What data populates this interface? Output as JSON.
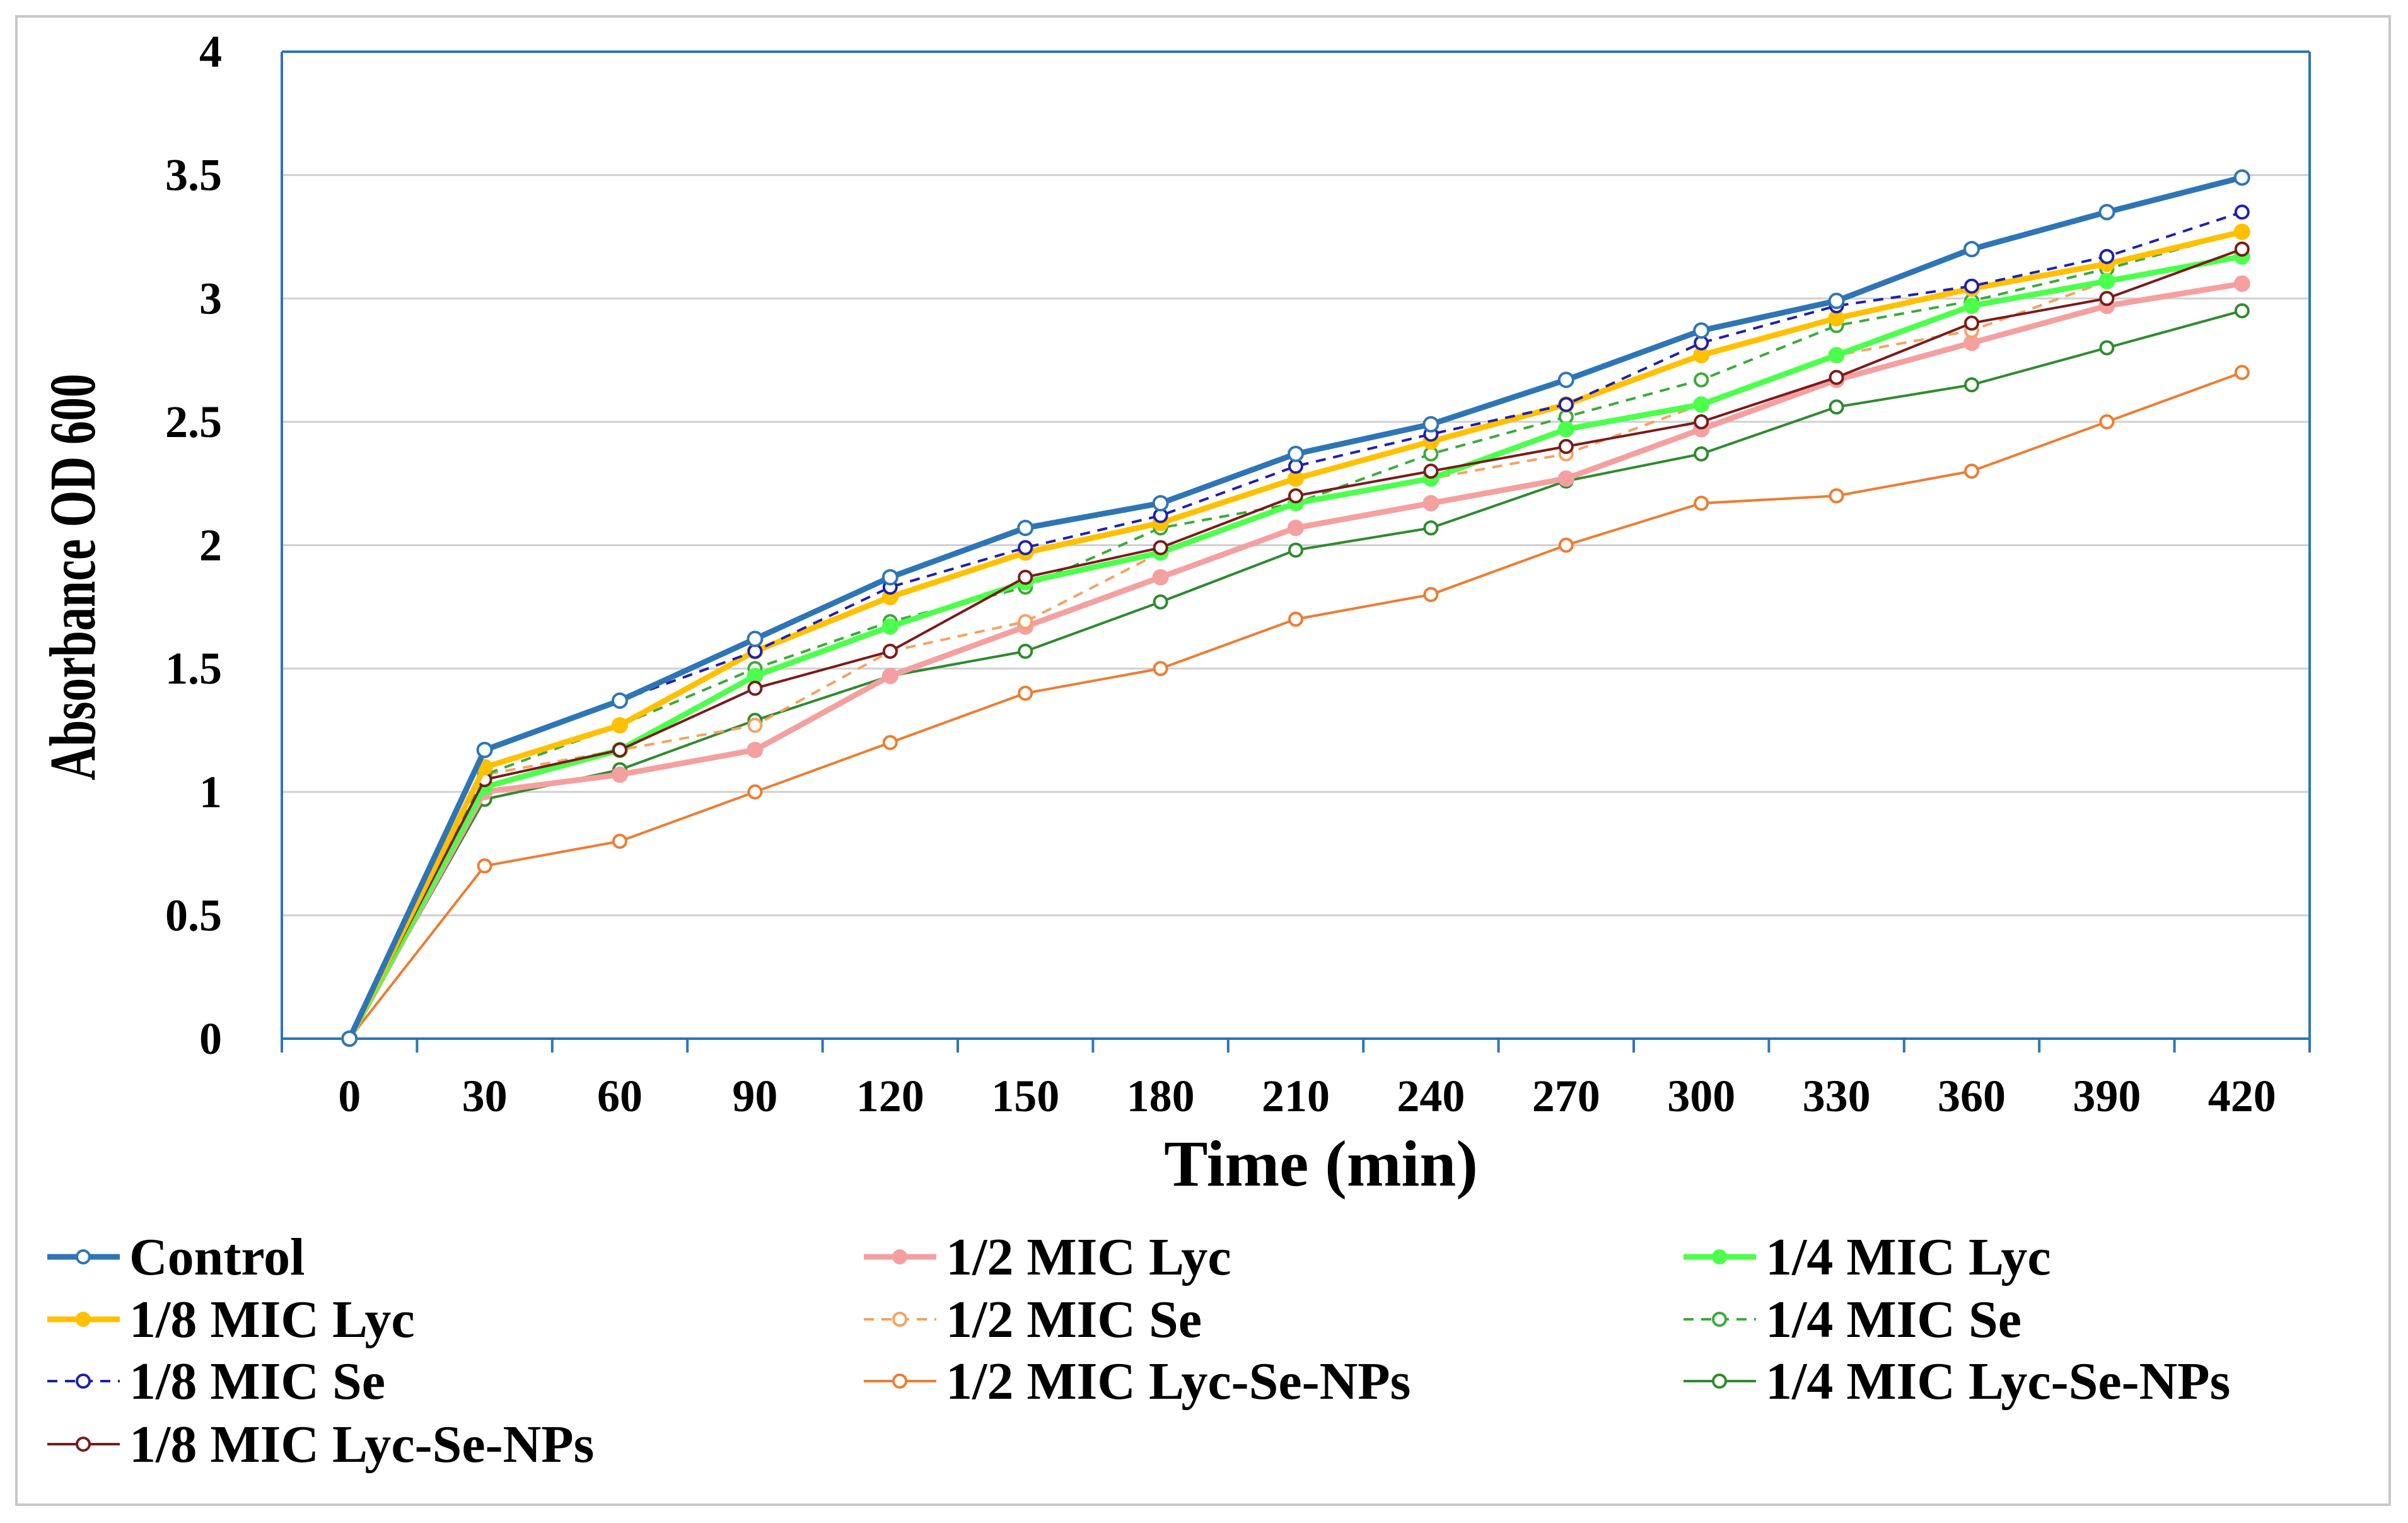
{
  "chart_data": {
    "type": "line",
    "title": "",
    "xlabel": "Time (min)",
    "ylabel": "Absorbance OD 600",
    "x": [
      0,
      30,
      60,
      90,
      120,
      150,
      180,
      210,
      240,
      270,
      300,
      330,
      360,
      390,
      420
    ],
    "x_tick_labels": [
      "0",
      "30",
      "60",
      "90",
      "120",
      "150",
      "180",
      "210",
      "240",
      "270",
      "300",
      "330",
      "360",
      "390",
      "420"
    ],
    "ylim": [
      0,
      4
    ],
    "y_ticks": [
      0,
      0.5,
      1,
      1.5,
      2,
      2.5,
      3,
      3.5,
      4
    ],
    "y_tick_labels": [
      "0",
      "0.5",
      "1",
      "1.5",
      "2",
      "2.5",
      "3",
      "3.5",
      "4"
    ],
    "grid": "horizontal",
    "legend_position": "bottom",
    "series": [
      {
        "name": "Control",
        "color": "#2e75b6",
        "style": "solid",
        "weight": "thick",
        "marker": "open-circle",
        "values": [
          0,
          1.17,
          1.37,
          1.62,
          1.87,
          2.07,
          2.17,
          2.37,
          2.49,
          2.67,
          2.87,
          2.99,
          3.2,
          3.35,
          3.49
        ]
      },
      {
        "name": "1/2 MIC Lyc",
        "color": "#f4a0a0",
        "style": "solid",
        "weight": "thick",
        "marker": "filled-circle",
        "values": [
          0,
          1.0,
          1.07,
          1.17,
          1.47,
          1.67,
          1.87,
          2.07,
          2.17,
          2.27,
          2.47,
          2.67,
          2.82,
          2.97,
          3.06
        ]
      },
      {
        "name": "1/4 MIC Lyc",
        "color": "#4cff4c",
        "style": "solid",
        "weight": "thick",
        "marker": "filled-circle",
        "values": [
          0,
          1.02,
          1.17,
          1.47,
          1.67,
          1.85,
          1.97,
          2.17,
          2.27,
          2.47,
          2.57,
          2.77,
          2.97,
          3.07,
          3.17
        ]
      },
      {
        "name": "1/8 MIC Lyc",
        "color": "#ffc000",
        "style": "solid",
        "weight": "thick",
        "marker": "filled-circle",
        "values": [
          0,
          1.1,
          1.27,
          1.57,
          1.79,
          1.97,
          2.09,
          2.27,
          2.42,
          2.57,
          2.77,
          2.92,
          3.04,
          3.14,
          3.27
        ]
      },
      {
        "name": "1/2 MIC Se",
        "color": "#f4a261",
        "style": "dashed",
        "weight": "thin",
        "marker": "open-circle",
        "values": [
          0,
          1.07,
          1.17,
          1.27,
          1.57,
          1.69,
          1.97,
          2.17,
          2.27,
          2.37,
          2.57,
          2.77,
          2.87,
          3.07,
          3.17
        ]
      },
      {
        "name": "1/4 MIC Se",
        "color": "#3aaa3a",
        "style": "dashed",
        "weight": "thin",
        "marker": "open-circle",
        "values": [
          0,
          1.07,
          1.27,
          1.5,
          1.69,
          1.83,
          2.07,
          2.17,
          2.37,
          2.52,
          2.67,
          2.89,
          2.99,
          3.12,
          3.27
        ]
      },
      {
        "name": "1/8 MIC Se",
        "color": "#1f1fb0",
        "style": "dashed",
        "weight": "thin",
        "marker": "open-circle",
        "values": [
          0,
          1.17,
          1.37,
          1.57,
          1.83,
          1.99,
          2.12,
          2.32,
          2.45,
          2.57,
          2.82,
          2.97,
          3.05,
          3.17,
          3.35
        ]
      },
      {
        "name": "1/2 MIC Lyc-Se-NPs",
        "color": "#ed7d31",
        "style": "solid",
        "weight": "thin",
        "marker": "open-circle",
        "values": [
          0,
          0.7,
          0.8,
          1.0,
          1.2,
          1.4,
          1.5,
          1.7,
          1.8,
          2.0,
          2.17,
          2.2,
          2.3,
          2.5,
          2.7
        ]
      },
      {
        "name": "1/4 MIC Lyc-Se-NPs",
        "color": "#2e8b2e",
        "style": "solid",
        "weight": "thin",
        "marker": "open-circle",
        "values": [
          0,
          0.97,
          1.09,
          1.29,
          1.47,
          1.57,
          1.77,
          1.98,
          2.07,
          2.26,
          2.37,
          2.56,
          2.65,
          2.8,
          2.95
        ]
      },
      {
        "name": "1/8 MIC Lyc-Se-NPs",
        "color": "#7b1b1b",
        "style": "solid",
        "weight": "thin",
        "marker": "open-circle",
        "values": [
          0,
          1.05,
          1.17,
          1.42,
          1.57,
          1.87,
          1.99,
          2.2,
          2.3,
          2.4,
          2.5,
          2.68,
          2.9,
          3.0,
          3.2
        ]
      }
    ]
  }
}
